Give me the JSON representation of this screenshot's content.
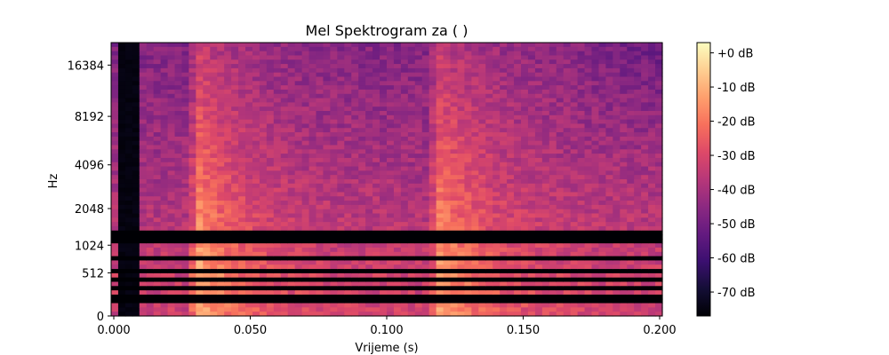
{
  "chart_data": [
    {
      "type": "heatmap",
      "title": "Mel Spektrogram za ( )",
      "xlabel": "Vrijeme (s)",
      "ylabel": "Hz",
      "xlim": [
        0.0,
        0.2
      ],
      "x_ticks": [
        0.0,
        0.05,
        0.1,
        0.15,
        0.2
      ],
      "x_tick_labels": [
        "0.000",
        "0.050",
        "0.100",
        "0.150",
        "0.200"
      ],
      "y_tick_labels": [
        "0",
        "512",
        "1024",
        "2048",
        "4096",
        "8192",
        "16384"
      ],
      "y_ticks_hz": [
        0,
        512,
        1024,
        2048,
        4096,
        8192,
        16384
      ],
      "y_scale": "mel",
      "colormap": "magma",
      "color_range_db": [
        -77,
        3
      ],
      "colorbar_tick_labels": [
        "+0 dB",
        "-10 dB",
        "-20 dB",
        "-30 dB",
        "-40 dB",
        "-50 dB",
        "-60 dB",
        "-70 dB"
      ],
      "colorbar_ticks_db": [
        0,
        -10,
        -20,
        -30,
        -40,
        -50,
        -60,
        -70
      ],
      "events": [
        {
          "time_s": 0.031,
          "note": "first onset, energy strongest ~0.03–0.05 s"
        },
        {
          "time_s": 0.119,
          "note": "second onset, energy strongest ~0.12–0.14 s"
        }
      ],
      "silent_start_s": [
        0.002,
        0.011
      ],
      "dark_bands_hz": [
        140,
        200,
        300,
        420,
        560,
        750,
        1150,
        1300
      ]
    }
  ]
}
